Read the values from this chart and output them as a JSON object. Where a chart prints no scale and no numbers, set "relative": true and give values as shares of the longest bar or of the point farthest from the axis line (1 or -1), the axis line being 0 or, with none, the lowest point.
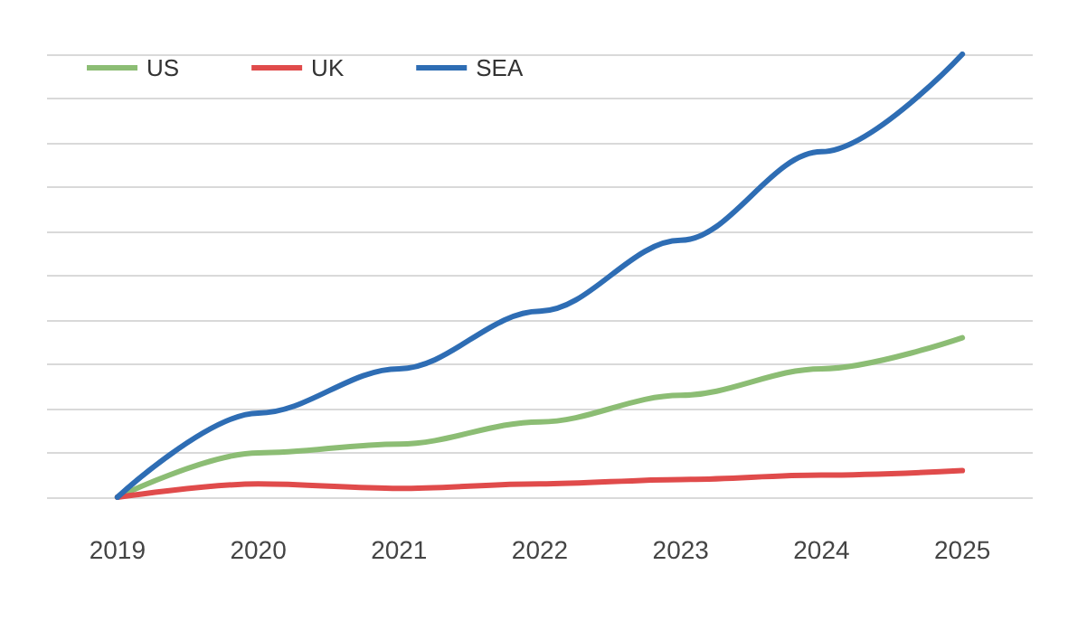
{
  "chart_data": {
    "type": "line",
    "relative": true,
    "categories": [
      "2019",
      "2020",
      "2021",
      "2022",
      "2023",
      "2024",
      "2025"
    ],
    "series": [
      {
        "name": "US",
        "color": "#8cbd74",
        "values": [
          0,
          0.1,
          0.12,
          0.17,
          0.23,
          0.29,
          0.36
        ]
      },
      {
        "name": "UK",
        "color": "#e04b4b",
        "values": [
          0,
          0.03,
          0.02,
          0.03,
          0.04,
          0.05,
          0.06
        ]
      },
      {
        "name": "SEA",
        "color": "#2e6db4",
        "values": [
          0,
          0.19,
          0.29,
          0.42,
          0.58,
          0.78,
          1
        ]
      }
    ],
    "grid": "y",
    "legend": "top left",
    "marker": "none",
    "line_style": "solid"
  }
}
